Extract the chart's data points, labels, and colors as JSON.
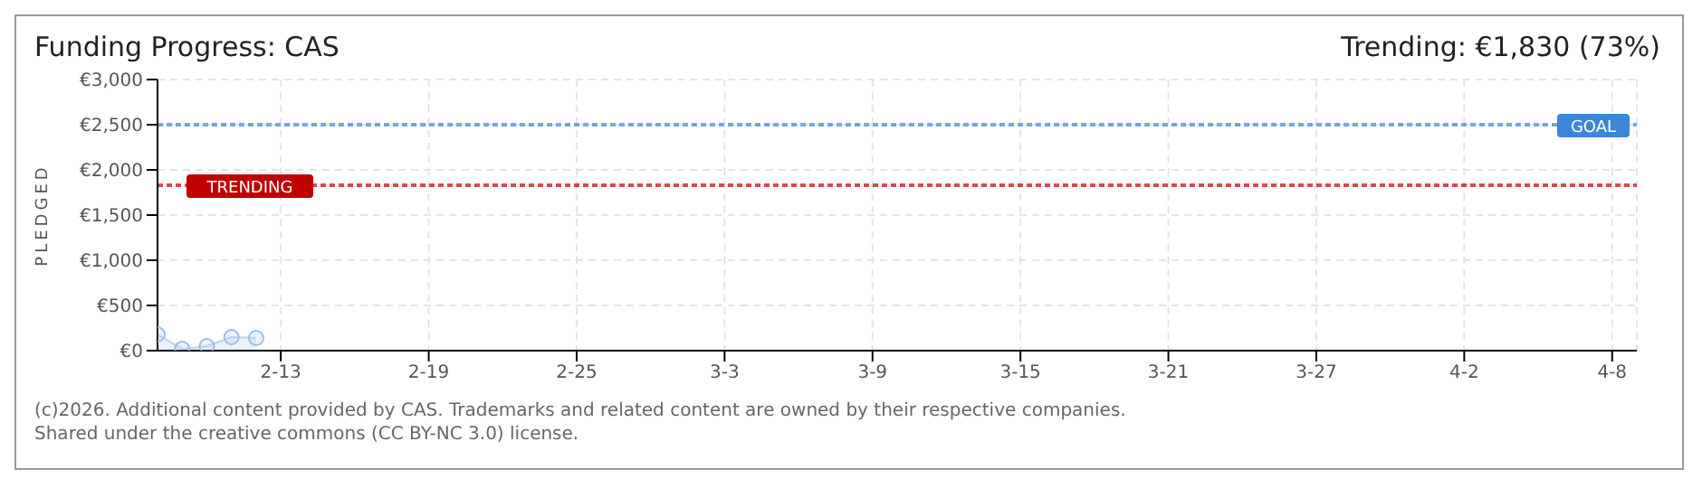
{
  "chart_data": {
    "type": "area",
    "title": "Funding Progress: CAS",
    "subtitle": "Trending: €1,830 (73%)",
    "ylabel": "PLEDGED",
    "x": [
      "--02-08",
      "--02-09",
      "--02-10",
      "--02-11",
      "--02-12"
    ],
    "series": [
      {
        "color": "#b8d4f4",
        "values": [
          180,
          20,
          50,
          150,
          140
        ]
      }
    ],
    "xlim": [
      "--02-08",
      "--04-09"
    ],
    "xticks": [
      {
        "value": "--02-13",
        "label": "2-13"
      },
      {
        "value": "--02-19",
        "label": "2-19"
      },
      {
        "value": "--02-25",
        "label": "2-25"
      },
      {
        "value": "--03-03",
        "label": "3-3"
      },
      {
        "value": "--03-09",
        "label": "3-9"
      },
      {
        "value": "--03-15",
        "label": "3-15"
      },
      {
        "value": "--03-21",
        "label": "3-21"
      },
      {
        "value": "--03-27",
        "label": "3-27"
      },
      {
        "value": "--04-02",
        "label": "4-2"
      },
      {
        "value": "--04-08",
        "label": "4-8"
      }
    ],
    "ylim": [
      0,
      3000
    ],
    "yticks": [
      {
        "value": 0,
        "label": "€0"
      },
      {
        "value": 500,
        "label": "€500"
      },
      {
        "value": 1000,
        "label": "€1,000"
      },
      {
        "value": 1500,
        "label": "€1,500"
      },
      {
        "value": 2000,
        "label": "€2,000"
      },
      {
        "value": 2500,
        "label": "€2,500"
      },
      {
        "value": 3000,
        "label": "€3,000"
      }
    ],
    "ref_lines": [
      {
        "axis": "y",
        "value": 2500,
        "label": "GOAL",
        "color": "#3d85d8",
        "line_style": "dotted"
      },
      {
        "axis": "y",
        "value": 1830,
        "label": "TRENDING",
        "color": "#c00000",
        "line_style": "dotted"
      }
    ],
    "grid": true,
    "marker": "circle",
    "annotations": [
      "(c)2026. Additional content provided by CAS. Trademarks and related content are owned by their respective companies.",
      "Shared under the creative commons (CC BY-NC 3.0) license."
    ]
  }
}
